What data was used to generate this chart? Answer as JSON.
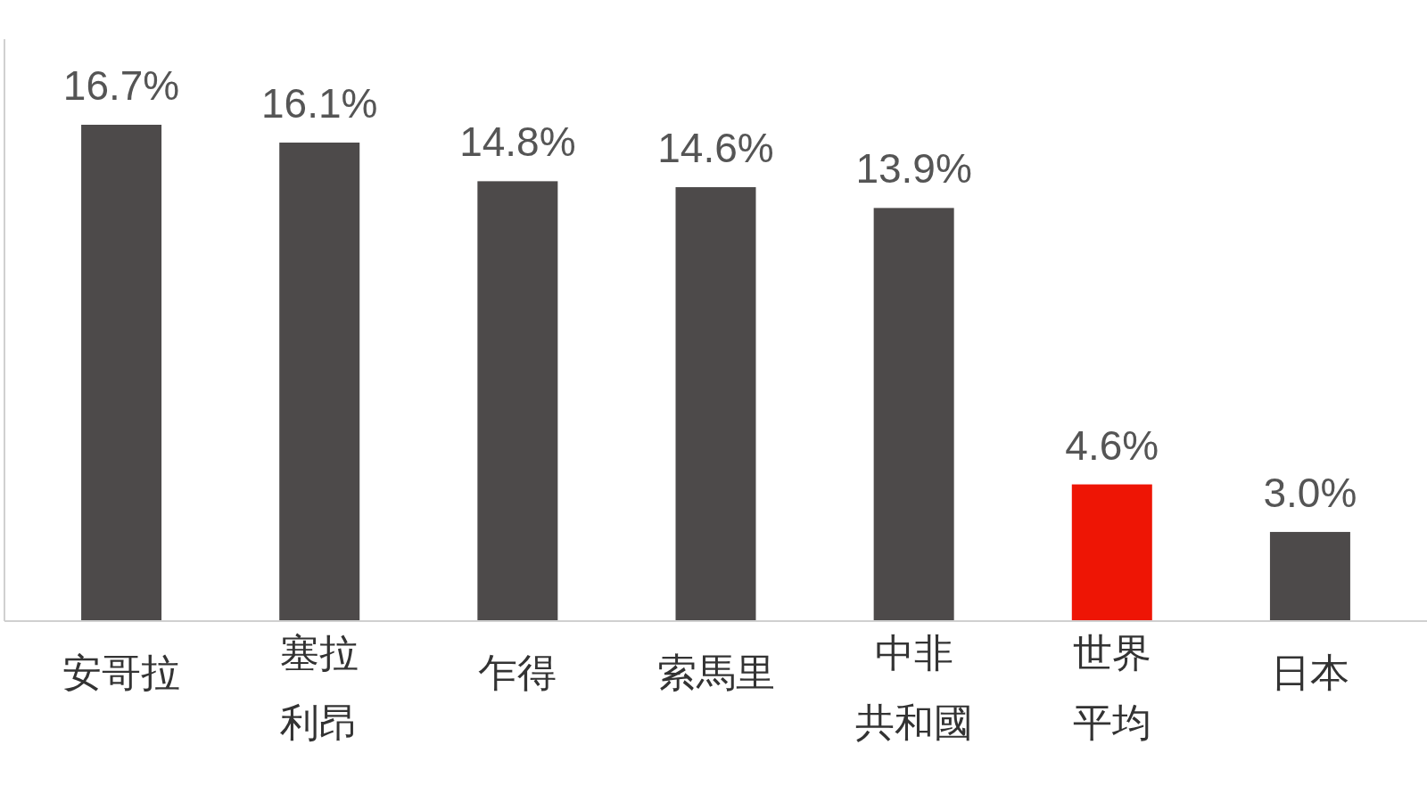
{
  "chart_data": {
    "type": "bar",
    "categories": [
      "安哥拉",
      "塞拉利昂",
      "乍得",
      "索馬里",
      "中非共和國",
      "世界平均",
      "日本"
    ],
    "values": [
      16.7,
      16.1,
      14.8,
      14.6,
      13.9,
      4.6,
      3.0
    ],
    "value_labels": [
      "16.7%",
      "16.1%",
      "14.8%",
      "14.6%",
      "13.9%",
      "4.6%",
      "3.0%"
    ],
    "colors": [
      "#4d4a4a",
      "#4d4a4a",
      "#4d4a4a",
      "#4d4a4a",
      "#4d4a4a",
      "#ee1505",
      "#4d4a4a"
    ]
  }
}
